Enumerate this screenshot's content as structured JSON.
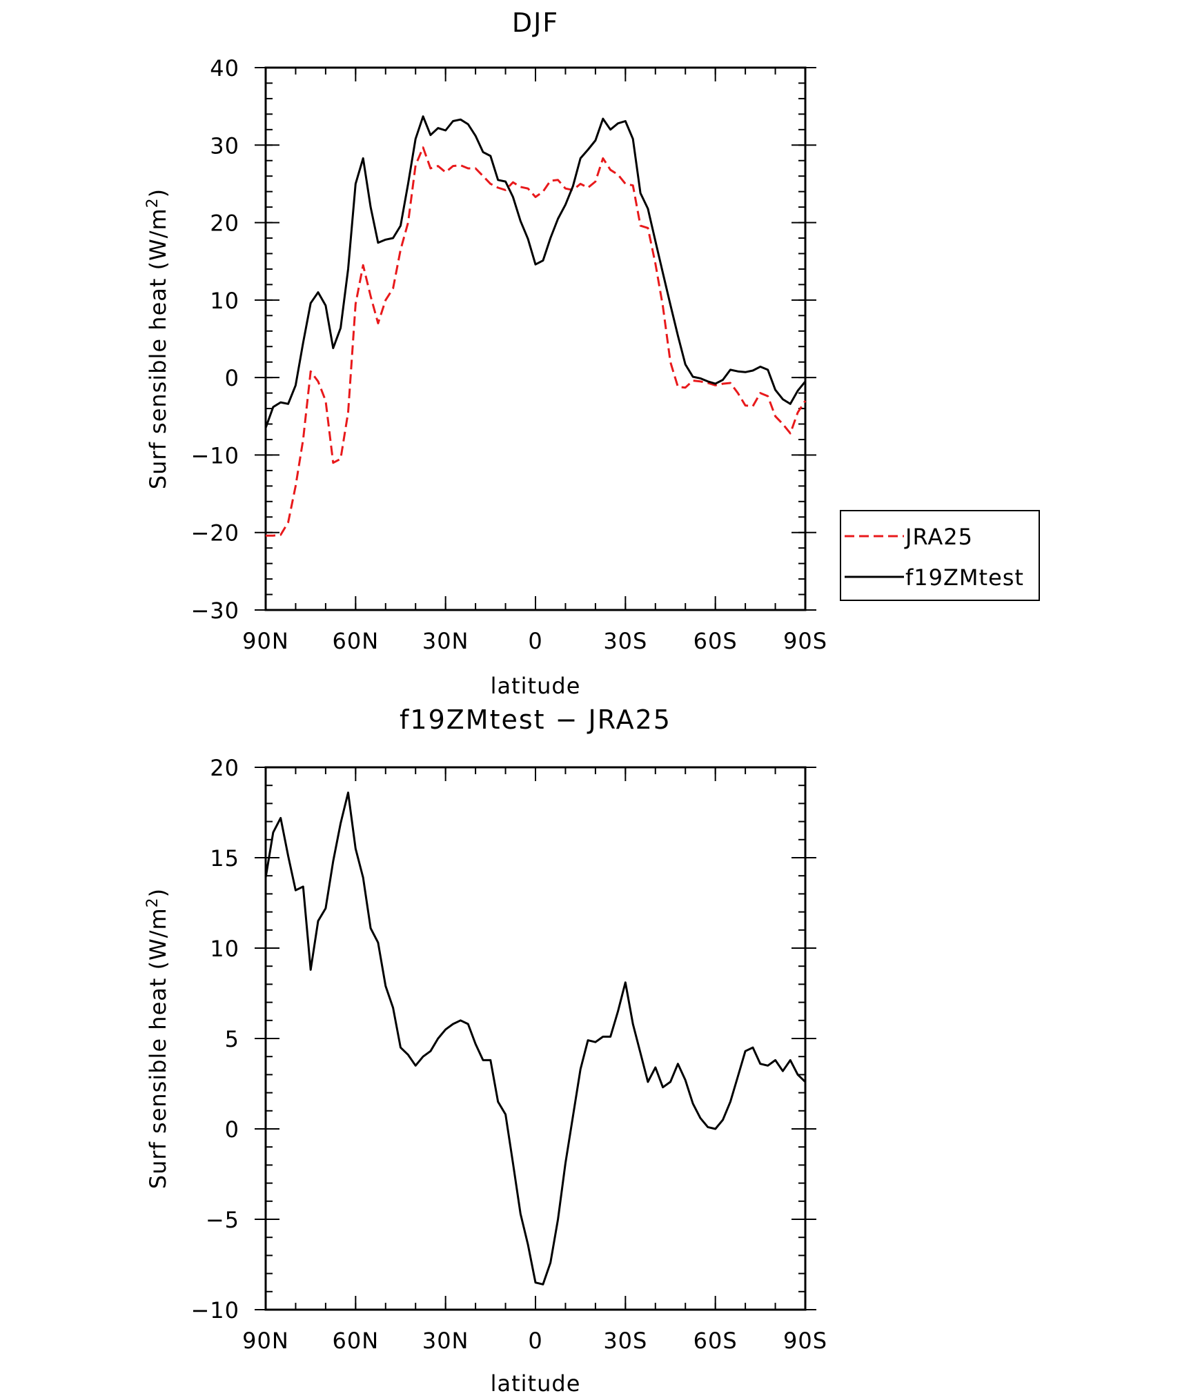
{
  "chart_data": [
    {
      "type": "line",
      "title": "DJF",
      "xlabel": "latitude",
      "ylabel": "Surf sensible heat (W/m",
      "ylabel_sup": "2",
      "ylabel_close": ")",
      "xlim": [
        90,
        -90
      ],
      "ylim": [
        -30,
        40
      ],
      "yticks": [
        -30,
        -20,
        -10,
        0,
        10,
        20,
        30,
        40
      ],
      "ytick_labels": [
        "−30",
        "−20",
        "−10",
        "0",
        "10",
        "20",
        "30",
        "40"
      ],
      "xticks": [
        90,
        60,
        30,
        0,
        -30,
        -60,
        -90
      ],
      "xtick_labels": [
        "90N",
        "60N",
        "30N",
        "0",
        "30S",
        "60S",
        "90S"
      ],
      "legend": {
        "placement": "right"
      },
      "series": [
        {
          "name": "JRA25",
          "color": "#e8191b",
          "dash": "dashed",
          "x": [
            90,
            87.5,
            85,
            82.5,
            80,
            77.5,
            75,
            72.5,
            70,
            67.5,
            65,
            62.5,
            60,
            57.5,
            55,
            52.5,
            50,
            47.5,
            45,
            42.5,
            40,
            37.5,
            35,
            32.5,
            30,
            27.5,
            25,
            22.5,
            20,
            17.5,
            15,
            12.5,
            10,
            7.5,
            5,
            2.5,
            0,
            -2.5,
            -5,
            -7.5,
            -10,
            -12.5,
            -15,
            -17.5,
            -20,
            -22.5,
            -25,
            -27.5,
            -30,
            -32.5,
            -35,
            -37.5,
            -40,
            -42.5,
            -45,
            -47.5,
            -50,
            -52.5,
            -55,
            -57.5,
            -60,
            -62.5,
            -65,
            -67.5,
            -70,
            -72.5,
            -75,
            -77.5,
            -80,
            -82.5,
            -85,
            -87.5,
            -90
          ],
          "y": [
            -20.4,
            -20.4,
            -20.3,
            -18.7,
            -14,
            -8,
            0.8,
            -0.5,
            -3,
            -11,
            -10.5,
            -4.5,
            9.5,
            14.5,
            10.5,
            7,
            10,
            11.5,
            16.5,
            20,
            27.4,
            29.7,
            27,
            27.3,
            26.5,
            27.3,
            27.4,
            27,
            27,
            26,
            25,
            24.5,
            24.2,
            25.2,
            24.6,
            24.4,
            23.3,
            24,
            25.4,
            25.5,
            24.4,
            24.2,
            25,
            24.5,
            25.3,
            28.3,
            26.8,
            26.2,
            25,
            24.8,
            19.6,
            19.3,
            14.7,
            9.2,
            2,
            -1.2,
            -1.3,
            -0.4,
            -0.5,
            -0.7,
            -1,
            -0.8,
            -0.7,
            -2,
            -3.6,
            -3.7,
            -2,
            -2.4,
            -5,
            -6,
            -7.2,
            -4.5,
            -3
          ]
        },
        {
          "name": "f19ZMtest",
          "color": "#000000",
          "dash": "solid",
          "x": [
            90,
            87.5,
            85,
            82.5,
            80,
            77.5,
            75,
            72.5,
            70,
            67.5,
            65,
            62.5,
            60,
            57.5,
            55,
            52.5,
            50,
            47.5,
            45,
            42.5,
            40,
            37.5,
            35,
            32.5,
            30,
            27.5,
            25,
            22.5,
            20,
            17.5,
            15,
            12.5,
            10,
            7.5,
            5,
            2.5,
            0,
            -2.5,
            -5,
            -7.5,
            -10,
            -12.5,
            -15,
            -17.5,
            -20,
            -22.5,
            -25,
            -27.5,
            -30,
            -32.5,
            -35,
            -37.5,
            -40,
            -42.5,
            -45,
            -47.5,
            -50,
            -52.5,
            -55,
            -57.5,
            -60,
            -62.5,
            -65,
            -67.5,
            -70,
            -72.5,
            -75,
            -77.5,
            -80,
            -82.5,
            -85,
            -87.5,
            -90
          ],
          "y": [
            -6.5,
            -3.8,
            -3.2,
            -3.4,
            -1,
            4.5,
            9.6,
            11,
            9.3,
            3.8,
            6.4,
            14,
            25,
            28.3,
            22,
            17.4,
            17.8,
            18,
            19.6,
            25,
            30.8,
            33.7,
            31.3,
            32.2,
            31.9,
            33.1,
            33.3,
            32.7,
            31.2,
            29.1,
            28.6,
            25.5,
            25.3,
            23.3,
            20.2,
            17.9,
            14.6,
            15.1,
            18,
            20.5,
            22.3,
            24.7,
            28.3,
            29.4,
            30.6,
            33.4,
            32,
            32.8,
            33.1,
            30.8,
            23.8,
            21.8,
            17.6,
            13.5,
            9.4,
            5.4,
            1.7,
            0.1,
            -0.1,
            -0.5,
            -0.8,
            -0.3,
            1,
            0.8,
            0.7,
            0.9,
            1.4,
            1,
            -1.6,
            -2.8,
            -3.4,
            -1.7,
            -0.5
          ]
        }
      ]
    },
    {
      "type": "line",
      "title": "f19ZMtest − JRA25",
      "xlabel": "latitude",
      "ylabel": "Surf sensible heat (W/m",
      "ylabel_sup": "2",
      "ylabel_close": ")",
      "xlim": [
        90,
        -90
      ],
      "ylim": [
        -10,
        20
      ],
      "yticks": [
        -10,
        -5,
        0,
        5,
        10,
        15,
        20
      ],
      "ytick_labels": [
        "−10",
        "−5",
        "0",
        "5",
        "10",
        "15",
        "20"
      ],
      "xticks": [
        90,
        60,
        30,
        0,
        -30,
        -60,
        -90
      ],
      "xtick_labels": [
        "90N",
        "60N",
        "30N",
        "0",
        "30S",
        "60S",
        "90S"
      ],
      "series": [
        {
          "color": "#000000",
          "dash": "solid",
          "x": [
            90,
            87.5,
            85,
            82.5,
            80,
            77.5,
            75,
            72.5,
            70,
            67.5,
            65,
            62.5,
            60,
            57.5,
            55,
            52.5,
            50,
            47.5,
            45,
            42.5,
            40,
            37.5,
            35,
            32.5,
            30,
            27.5,
            25,
            22.5,
            20,
            17.5,
            15,
            12.5,
            10,
            7.5,
            5,
            2.5,
            0,
            -2.5,
            -5,
            -7.5,
            -10,
            -12.5,
            -15,
            -17.5,
            -20,
            -22.5,
            -25,
            -27.5,
            -30,
            -32.5,
            -35,
            -37.5,
            -40,
            -42.5,
            -45,
            -47.5,
            -50,
            -52.5,
            -55,
            -57.5,
            -60,
            -62.5,
            -65,
            -67.5,
            -70,
            -72.5,
            -75,
            -77.5,
            -80,
            -82.5,
            -85,
            -87.5,
            -90
          ],
          "y": [
            13.9,
            16.4,
            17.2,
            15.1,
            13.2,
            13.4,
            8.8,
            11.5,
            12.2,
            14.8,
            16.9,
            18.6,
            15.5,
            13.9,
            11.1,
            10.3,
            7.9,
            6.7,
            4.5,
            4.1,
            3.5,
            4,
            4.3,
            5,
            5.5,
            5.8,
            6,
            5.8,
            4.7,
            3.8,
            3.8,
            1.5,
            0.8,
            -1.9,
            -4.7,
            -6.4,
            -8.5,
            -8.6,
            -7.4,
            -5,
            -1.9,
            0.7,
            3.3,
            4.9,
            4.8,
            5.1,
            5.1,
            6.5,
            8.1,
            5.8,
            4.2,
            2.6,
            3.4,
            2.3,
            2.6,
            3.6,
            2.7,
            1.4,
            0.6,
            0.1,
            0,
            0.5,
            1.5,
            2.9,
            4.3,
            4.5,
            3.6,
            3.5,
            3.8,
            3.2,
            3.8,
            3,
            2.6
          ]
        }
      ]
    }
  ]
}
